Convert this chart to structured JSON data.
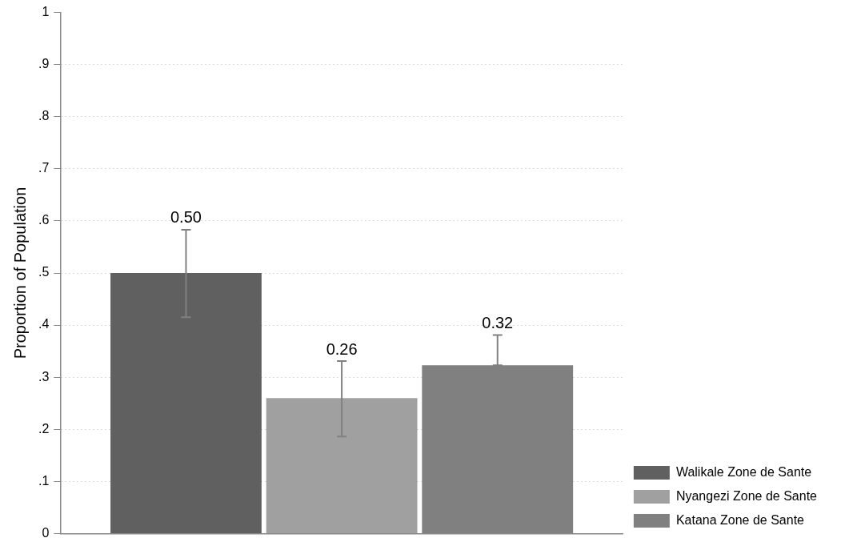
{
  "chart_data": {
    "type": "bar",
    "ylabel": "Proportion of Population",
    "categories": [
      null
    ],
    "series": [
      {
        "name": "Walikale Zone de Sante",
        "color": "#606060",
        "values": [
          0.5
        ],
        "errors": [
          [
            0.415,
            0.583
          ]
        ],
        "value_labels": [
          "0.50"
        ]
      },
      {
        "name": "Nyangezi Zone de Sante",
        "color": "#a0a0a0",
        "values": [
          0.26
        ],
        "errors": [
          [
            0.186,
            0.331
          ]
        ],
        "value_labels": [
          "0.26"
        ]
      },
      {
        "name": "Katana Zone de Sante",
        "color": "#808080",
        "values": [
          0.323
        ],
        "errors": [
          [
            0.323,
            0.381
          ]
        ],
        "value_labels": [
          "0.32"
        ]
      }
    ],
    "ylim": [
      0,
      1
    ],
    "yticks": [
      0,
      {
        "value": 0.1,
        "label": ".1"
      },
      {
        "value": 0.2,
        "label": ".2"
      },
      {
        "value": 0.3,
        "label": ".3"
      },
      {
        "value": 0.4,
        "label": ".4"
      },
      {
        "value": 0.5,
        "label": ".5"
      },
      {
        "value": 0.6,
        "label": ".6"
      },
      {
        "value": 0.7,
        "label": ".7"
      },
      {
        "value": 0.8,
        "label": ".8"
      },
      {
        "value": 0.9,
        "label": ".9"
      },
      1
    ],
    "grid": "y",
    "legend": "bottom right"
  }
}
